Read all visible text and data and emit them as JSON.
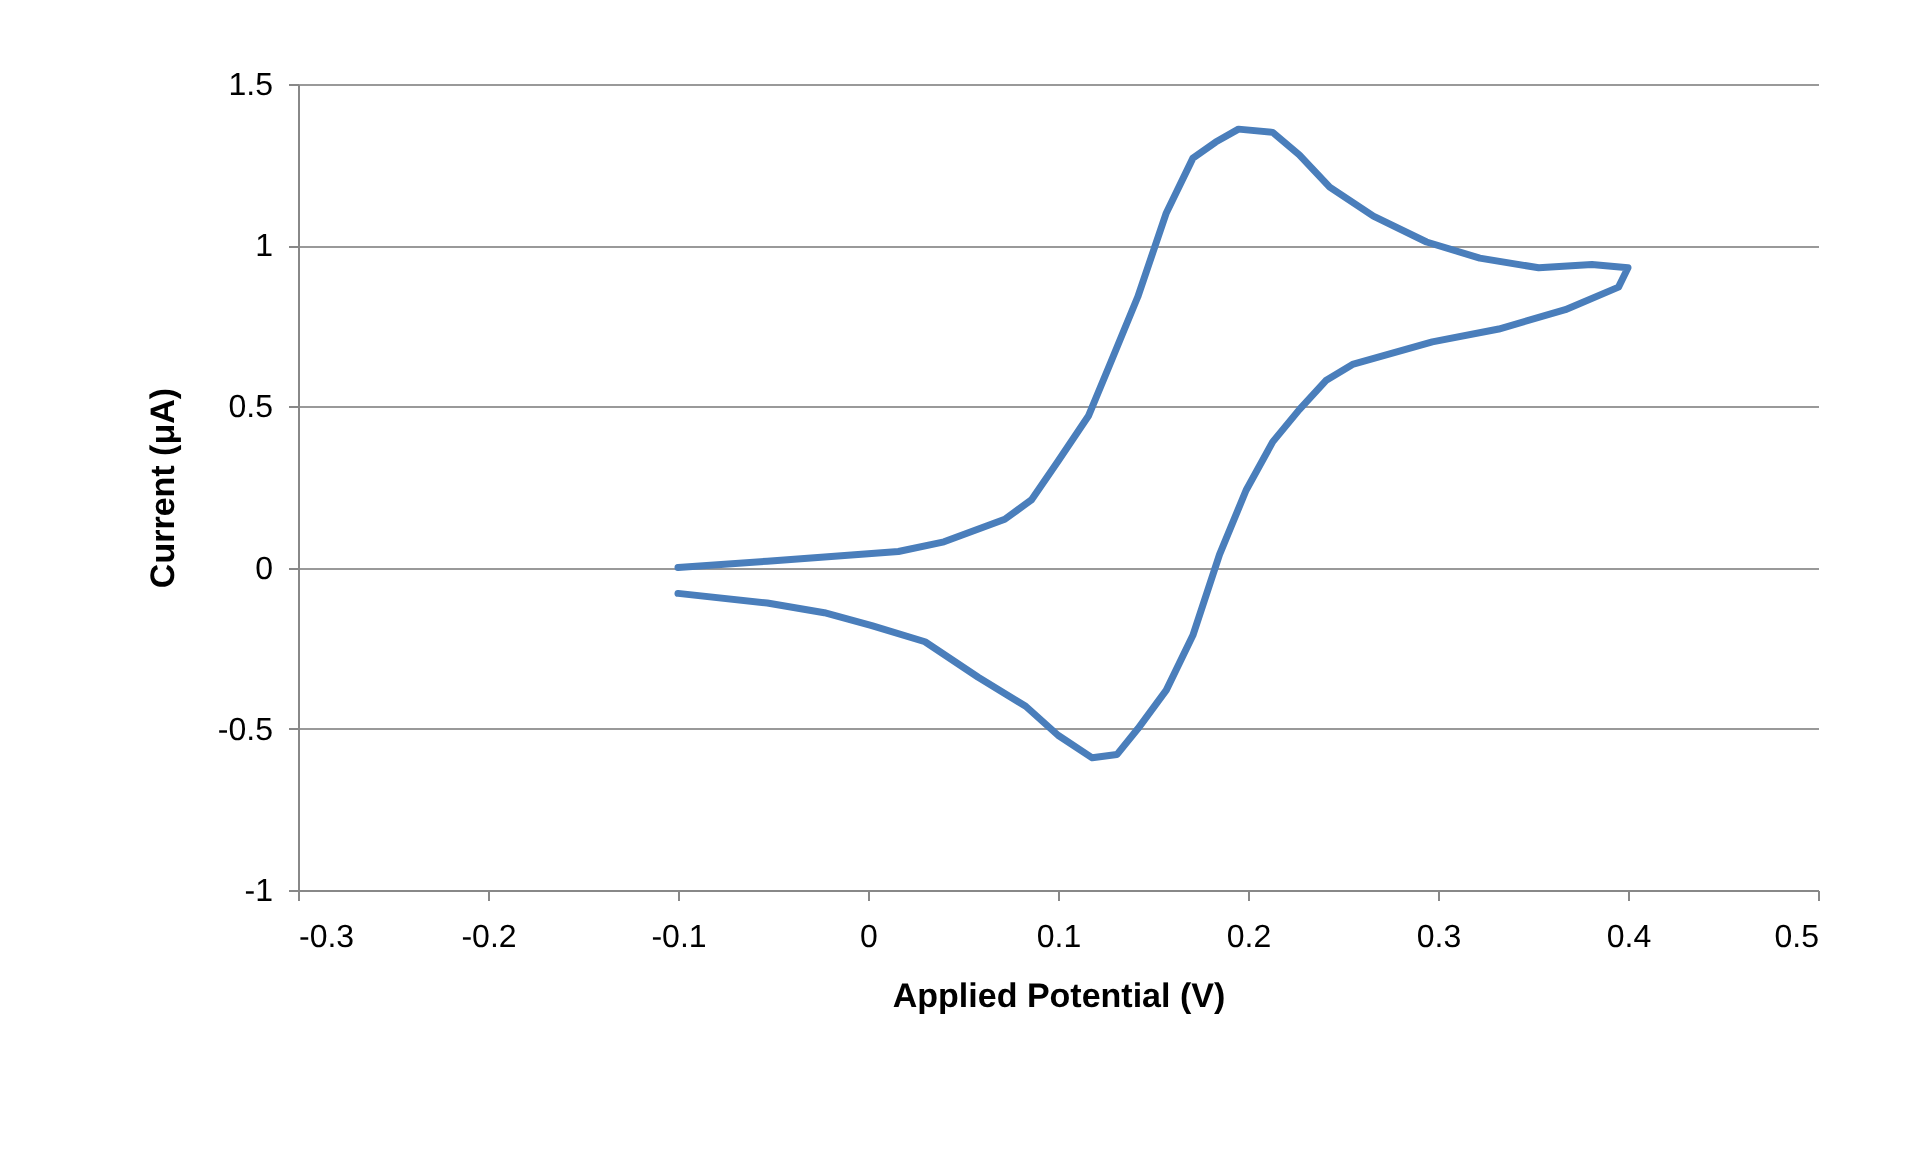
{
  "chart_data": {
    "type": "line",
    "xlabel": "Applied Potential (V)",
    "ylabel": "Current (μA)",
    "xlim": [
      -0.3,
      0.5
    ],
    "xticks": [
      -0.3,
      -0.2,
      -0.1,
      0,
      0.1,
      0.2,
      0.3,
      0.4,
      0.5
    ],
    "ylim": [
      -1,
      1.5
    ],
    "yticks": [
      -1,
      -0.5,
      0,
      0.5,
      1,
      1.5
    ],
    "grid": "y",
    "marker": "none",
    "line_style": "solid",
    "series": [
      {
        "color": "#4a7ebb",
        "x": [
          -0.1,
          -0.053,
          0.016,
          0.04,
          0.072,
          0.086,
          0.1,
          0.116,
          0.128,
          0.142,
          0.157,
          0.171,
          0.183,
          0.195,
          0.213,
          0.227,
          0.243,
          0.266,
          0.294,
          0.322,
          0.353,
          0.381,
          0.4,
          0.395,
          0.367,
          0.332,
          0.297,
          0.255,
          0.241,
          0.227,
          0.213,
          0.199,
          0.185,
          0.171,
          0.157,
          0.142,
          0.131,
          0.118,
          0.1,
          0.083,
          0.058,
          0.03,
          0.002,
          -0.023,
          -0.053,
          -0.1
        ],
        "values": [
          0.0,
          0.02,
          0.05,
          0.08,
          0.15,
          0.21,
          0.33,
          0.47,
          0.64,
          0.84,
          1.1,
          1.27,
          1.32,
          1.36,
          1.35,
          1.28,
          1.18,
          1.09,
          1.01,
          0.96,
          0.93,
          0.94,
          0.93,
          0.87,
          0.8,
          0.74,
          0.7,
          0.63,
          0.58,
          0.49,
          0.39,
          0.24,
          0.04,
          -0.21,
          -0.38,
          -0.5,
          -0.58,
          -0.59,
          -0.52,
          -0.43,
          -0.34,
          -0.23,
          -0.18,
          -0.14,
          -0.11,
          -0.08
        ]
      }
    ]
  }
}
